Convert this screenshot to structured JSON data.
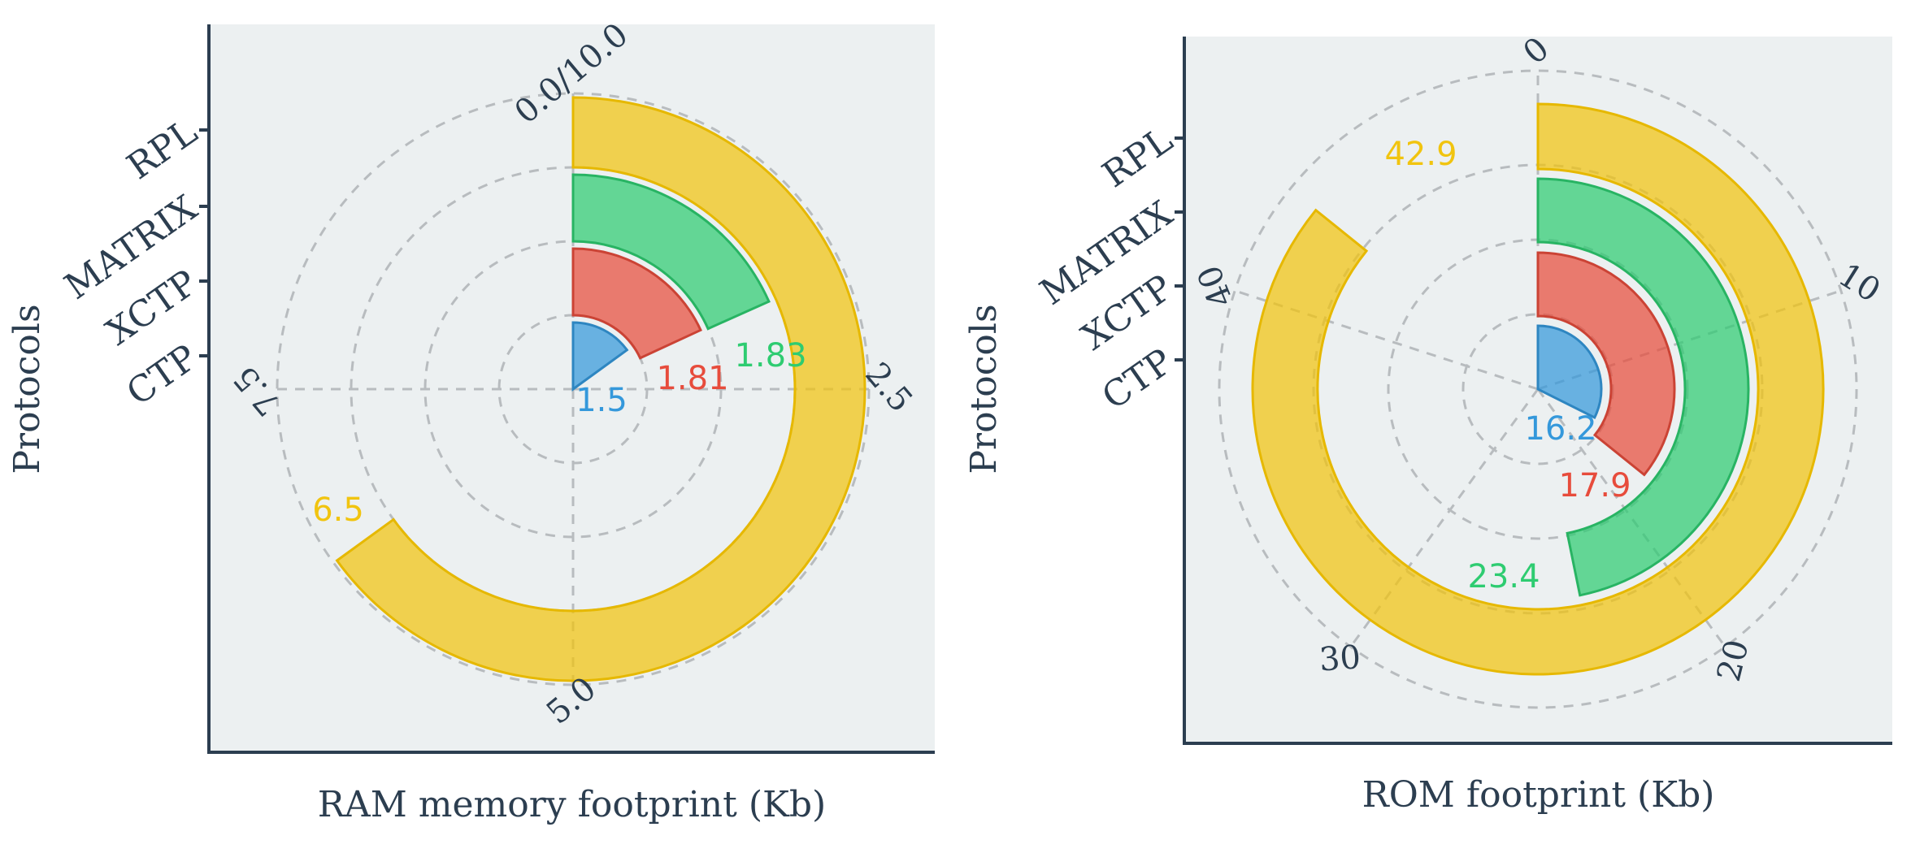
{
  "chart_data": [
    {
      "type": "radial-bar",
      "title": "",
      "xlabel": "RAM memory footprint (Kb)",
      "ylabel": "Protocols",
      "categories": [
        "CTP",
        "XCTP",
        "MATRIX",
        "RPL"
      ],
      "values": [
        1.5,
        1.81,
        1.83,
        6.5
      ],
      "value_labels": [
        "1.5",
        "1.81",
        "1.83",
        "6.5"
      ],
      "colors": [
        "#3498db",
        "#e74c3c",
        "#2ecc71",
        "#f1c40f"
      ],
      "angular_range": [
        0,
        10
      ],
      "angular_ticks": [
        {
          "value": 0,
          "label": "0.0/10.0"
        },
        {
          "value": 2.5,
          "label": "2.5"
        },
        {
          "value": 5,
          "label": "5.0"
        },
        {
          "value": 7.5,
          "label": "7.5"
        }
      ],
      "grid": true,
      "background": "#ecf0f1",
      "legend": "none"
    },
    {
      "type": "radial-bar",
      "title": "",
      "xlabel": "ROM footprint (Kb)",
      "ylabel": "Protocols",
      "categories": [
        "CTP",
        "XCTP",
        "MATRIX",
        "RPL"
      ],
      "values": [
        16.2,
        17.9,
        23.4,
        42.9
      ],
      "value_labels": [
        "16.2",
        "17.9",
        "23.4",
        "42.9"
      ],
      "colors": [
        "#3498db",
        "#e74c3c",
        "#2ecc71",
        "#f1c40f"
      ],
      "angular_range": [
        0,
        50
      ],
      "angular_ticks": [
        {
          "value": 0,
          "label": "0"
        },
        {
          "value": 10,
          "label": "10"
        },
        {
          "value": 20,
          "label": "20"
        },
        {
          "value": 30,
          "label": "30"
        },
        {
          "value": 40,
          "label": "40"
        }
      ],
      "grid": true,
      "background": "#ecf0f1",
      "legend": "none"
    }
  ]
}
